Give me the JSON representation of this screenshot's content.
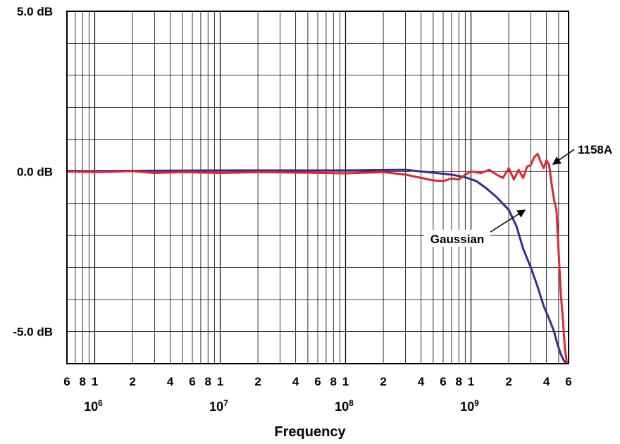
{
  "chart_data": {
    "type": "line",
    "title": "",
    "xlabel": "Frequency",
    "ylabel": "",
    "x_scale": "log",
    "xlim": [
      600000,
      6000000000
    ],
    "ylim": [
      -6,
      5
    ],
    "grid": true,
    "y_tick_labels": [
      {
        "value": 5,
        "label": "5.0 dB"
      },
      {
        "value": 0,
        "label": "0.0 dB"
      },
      {
        "value": -5,
        "label": "-5.0 dB"
      }
    ],
    "x_tick_labels": [
      {
        "value": 600000,
        "label": "6"
      },
      {
        "value": 800000,
        "label": "8"
      },
      {
        "value": 1000000,
        "label": "1"
      },
      {
        "value": 2000000,
        "label": "2"
      },
      {
        "value": 4000000,
        "label": "4"
      },
      {
        "value": 6000000,
        "label": "6"
      },
      {
        "value": 8000000,
        "label": "8"
      },
      {
        "value": 10000000,
        "label": "1"
      },
      {
        "value": 20000000,
        "label": "2"
      },
      {
        "value": 40000000,
        "label": "4"
      },
      {
        "value": 60000000,
        "label": "6"
      },
      {
        "value": 80000000,
        "label": "8"
      },
      {
        "value": 100000000,
        "label": "1"
      },
      {
        "value": 200000000,
        "label": "2"
      },
      {
        "value": 400000000,
        "label": "4"
      },
      {
        "value": 600000000,
        "label": "6"
      },
      {
        "value": 800000000,
        "label": "8"
      },
      {
        "value": 1000000000,
        "label": "1"
      },
      {
        "value": 2000000000,
        "label": "2"
      },
      {
        "value": 4000000000,
        "label": "4"
      },
      {
        "value": 6000000000,
        "label": "6"
      }
    ],
    "decade_labels": [
      {
        "value": 1000000,
        "base": "10",
        "exp": "6"
      },
      {
        "value": 10000000,
        "base": "10",
        "exp": "7"
      },
      {
        "value": 100000000,
        "base": "10",
        "exp": "8"
      },
      {
        "value": 1000000000,
        "base": "10",
        "exp": "9"
      }
    ],
    "series": [
      {
        "name": "Gaussian",
        "color": "#3d2a8f",
        "x": [
          600000,
          1000000,
          2000000,
          10000000,
          100000000,
          300000000,
          400000000,
          700000000,
          900000000,
          1100000000,
          1300000000,
          1600000000,
          2000000000,
          2300000000,
          2600000000,
          3000000000,
          3400000000,
          3800000000,
          4200000000,
          4600000000,
          4900000000,
          5200000000,
          5500000000,
          5800000000
        ],
        "values": [
          0.02,
          0.01,
          0.02,
          0.03,
          0.03,
          0.05,
          0.0,
          -0.1,
          -0.18,
          -0.3,
          -0.5,
          -0.8,
          -1.2,
          -1.7,
          -2.4,
          -3.0,
          -3.6,
          -4.2,
          -4.6,
          -5.0,
          -5.4,
          -5.7,
          -5.9,
          -6.0
        ]
      },
      {
        "name": "1158A",
        "color": "#e0262f",
        "x": [
          600000,
          1000000,
          2000000,
          3000000,
          5000000,
          10000000,
          20000000,
          50000000,
          100000000,
          200000000,
          300000000,
          400000000,
          500000000,
          600000000,
          700000000,
          800000000,
          900000000,
          1000000000,
          1200000000,
          1400000000,
          1600000000,
          1800000000,
          2000000000,
          2200000000,
          2400000000,
          2600000000,
          2800000000,
          3000000000,
          3200000000,
          3400000000,
          3600000000,
          3800000000,
          4000000000,
          4200000000,
          4400000000,
          4600000000,
          4800000000,
          5000000000,
          5200000000,
          5400000000,
          5600000000,
          5800000000,
          6000000000
        ],
        "values": [
          0.0,
          -0.02,
          0.01,
          -0.05,
          -0.02,
          -0.05,
          -0.02,
          -0.04,
          -0.06,
          -0.02,
          -0.1,
          -0.2,
          -0.28,
          -0.3,
          -0.22,
          -0.25,
          -0.1,
          0.0,
          -0.05,
          0.05,
          -0.1,
          -0.2,
          0.1,
          -0.25,
          0.05,
          -0.2,
          0.15,
          0.2,
          0.45,
          0.55,
          0.3,
          0.1,
          0.35,
          0.2,
          -0.4,
          -0.9,
          -1.2,
          -2.5,
          -3.8,
          -4.6,
          -5.5,
          -5.95,
          -6.0
        ]
      }
    ],
    "annotations": [
      {
        "text": "1158A",
        "series": "1158A"
      },
      {
        "text": "Gaussian",
        "series": "Gaussian"
      }
    ]
  }
}
